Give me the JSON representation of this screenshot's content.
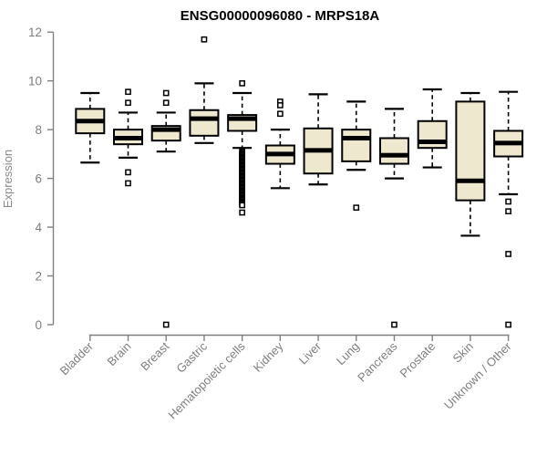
{
  "chart_data": {
    "type": "boxplot",
    "title": "ENSG00000096080 - MRPS18A",
    "ylabel": "Expression",
    "ylim": [
      0,
      12
    ],
    "yticks": [
      0,
      2,
      4,
      6,
      8,
      10,
      12
    ],
    "grid": false,
    "categories": [
      "Bladder",
      "Brain",
      "Breast",
      "Gastric",
      "Hematopoietic cells",
      "Kidney",
      "Liver",
      "Lung",
      "Pancreas",
      "Prostate",
      "Skin",
      "Unknown / Other"
    ],
    "boxes": [
      {
        "category": "Bladder",
        "whisker_low": 6.65,
        "q1": 7.85,
        "median": 8.35,
        "q3": 8.85,
        "whisker_high": 9.5,
        "outliers": []
      },
      {
        "category": "Brain",
        "whisker_low": 6.85,
        "q1": 7.4,
        "median": 7.65,
        "q3": 8.0,
        "whisker_high": 8.7,
        "outliers": [
          9.55,
          9.1,
          6.25,
          5.8
        ]
      },
      {
        "category": "Breast",
        "whisker_low": 7.1,
        "q1": 7.55,
        "median": 8.0,
        "q3": 8.15,
        "whisker_high": 8.7,
        "outliers": [
          9.5,
          9.1,
          0
        ]
      },
      {
        "category": "Gastric",
        "whisker_low": 7.45,
        "q1": 7.75,
        "median": 8.45,
        "q3": 8.8,
        "whisker_high": 9.9,
        "outliers": [
          11.7
        ]
      },
      {
        "category": "Hematopoietic cells",
        "whisker_low": 7.25,
        "q1": 7.95,
        "median": 8.45,
        "q3": 8.6,
        "whisker_high": 9.5,
        "outliers": [
          9.9,
          7.1,
          7.05,
          7.0,
          6.95,
          6.9,
          6.85,
          6.8,
          6.75,
          6.7,
          6.65,
          6.6,
          6.55,
          6.5,
          6.45,
          6.4,
          6.35,
          6.3,
          6.25,
          6.2,
          6.15,
          6.1,
          6.05,
          6.0,
          5.95,
          5.9,
          5.85,
          5.8,
          5.75,
          5.7,
          5.65,
          5.6,
          5.55,
          5.5,
          5.45,
          5.4,
          5.35,
          5.3,
          5.25,
          5.2,
          5.15,
          5.1,
          5.05,
          5.0,
          4.95,
          4.9,
          4.6
        ]
      },
      {
        "category": "Kidney",
        "whisker_low": 5.6,
        "q1": 6.6,
        "median": 7.0,
        "q3": 7.35,
        "whisker_high": 8.0,
        "outliers": [
          9.15,
          9.0,
          8.65
        ]
      },
      {
        "category": "Liver",
        "whisker_low": 5.75,
        "q1": 6.2,
        "median": 7.15,
        "q3": 8.05,
        "whisker_high": 9.45,
        "outliers": []
      },
      {
        "category": "Lung",
        "whisker_low": 6.35,
        "q1": 6.7,
        "median": 7.65,
        "q3": 8.0,
        "whisker_high": 9.15,
        "outliers": [
          4.8
        ]
      },
      {
        "category": "Pancreas",
        "whisker_low": 6.0,
        "q1": 6.6,
        "median": 6.95,
        "q3": 7.65,
        "whisker_high": 8.85,
        "outliers": [
          0
        ]
      },
      {
        "category": "Prostate",
        "whisker_low": 6.45,
        "q1": 7.25,
        "median": 7.5,
        "q3": 8.35,
        "whisker_high": 9.65,
        "outliers": []
      },
      {
        "category": "Skin",
        "whisker_low": 3.65,
        "q1": 5.1,
        "median": 5.9,
        "q3": 9.15,
        "whisker_high": 9.5,
        "outliers": []
      },
      {
        "category": "Unknown / Other",
        "whisker_low": 5.35,
        "q1": 6.9,
        "median": 7.45,
        "q3": 7.95,
        "whisker_high": 9.55,
        "outliers": [
          5.05,
          4.65,
          2.9,
          0
        ]
      }
    ]
  },
  "colors": {
    "box_fill": "#EEE8CF",
    "box_stroke": "#000000",
    "median_color": "#000000",
    "axis_color": "#808080",
    "tick_label_color": "#7e7e7e",
    "axis_label_color": "#8a8a8a",
    "title_color": "#000000",
    "background": "#ffffff"
  }
}
